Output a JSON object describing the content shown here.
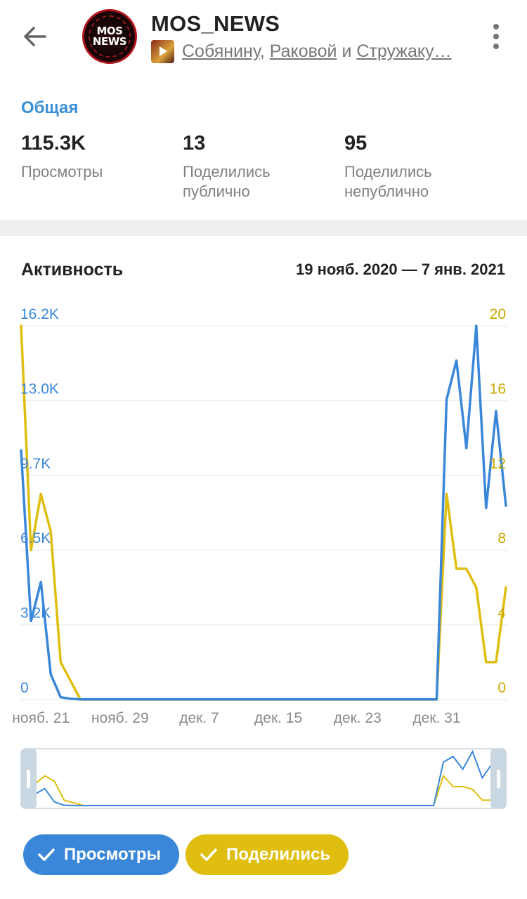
{
  "header": {
    "title": "MOS_NEWS",
    "avatar_text_top": "MOS",
    "avatar_text_bottom": "NEWS",
    "subtitle_link1": "Собянину",
    "subtitle_sep": ", ",
    "subtitle_link2": "Раковой",
    "subtitle_and": " и ",
    "subtitle_link3": "Стружаку…"
  },
  "summary": {
    "section_title": "Общая",
    "stats": [
      {
        "value": "115.3K",
        "label_line1": "Просмотры",
        "label_line2": ""
      },
      {
        "value": "13",
        "label_line1": "Поделились",
        "label_line2": "публично"
      },
      {
        "value": "95",
        "label_line1": "Поделились",
        "label_line2": "непублично"
      }
    ]
  },
  "activity": {
    "title": "Активность",
    "date_range": "19 нояб. 2020 — 7 янв. 2021"
  },
  "legend": {
    "views_label": "Просмотры",
    "shares_label": "Поделились"
  },
  "colors": {
    "views": "#3a87d9",
    "shares": "#dfbe0f",
    "accent": "#3a8fd6"
  },
  "chart_data": {
    "type": "line",
    "x": [
      "2020-11-19",
      "2020-11-20",
      "2020-11-21",
      "2020-11-22",
      "2020-11-23",
      "2020-11-24",
      "2020-11-25",
      "2020-11-26",
      "2020-11-27",
      "2020-11-28",
      "2020-11-29",
      "2020-11-30",
      "2020-12-01",
      "2020-12-02",
      "2020-12-03",
      "2020-12-04",
      "2020-12-05",
      "2020-12-06",
      "2020-12-07",
      "2020-12-08",
      "2020-12-09",
      "2020-12-10",
      "2020-12-11",
      "2020-12-12",
      "2020-12-13",
      "2020-12-14",
      "2020-12-15",
      "2020-12-16",
      "2020-12-17",
      "2020-12-18",
      "2020-12-19",
      "2020-12-20",
      "2020-12-21",
      "2020-12-22",
      "2020-12-23",
      "2020-12-24",
      "2020-12-25",
      "2020-12-26",
      "2020-12-27",
      "2020-12-28",
      "2020-12-29",
      "2020-12-30",
      "2020-12-31",
      "2021-01-01",
      "2021-01-02",
      "2021-01-03",
      "2021-01-04",
      "2021-01-05",
      "2021-01-06",
      "2021-01-07"
    ],
    "x_ticks": [
      "нояб. 21",
      "нояб. 29",
      "дек. 7",
      "дек. 15",
      "дек. 23",
      "дек. 31"
    ],
    "series": [
      {
        "name": "Просмотры",
        "axis": "left",
        "values": [
          10800,
          3400,
          5100,
          1100,
          100,
          30,
          10,
          10,
          5,
          5,
          5,
          5,
          5,
          5,
          5,
          5,
          5,
          5,
          5,
          5,
          5,
          5,
          5,
          5,
          5,
          5,
          5,
          5,
          5,
          5,
          5,
          5,
          5,
          5,
          5,
          5,
          5,
          5,
          5,
          5,
          5,
          5,
          5,
          13000,
          14700,
          10900,
          16200,
          8300,
          12500,
          8400
        ]
      },
      {
        "name": "Поделились",
        "axis": "right",
        "values": [
          20,
          8,
          11,
          9,
          2,
          1,
          0,
          0,
          0,
          0,
          0,
          0,
          0,
          0,
          0,
          0,
          0,
          0,
          0,
          0,
          0,
          0,
          0,
          0,
          0,
          0,
          0,
          0,
          0,
          0,
          0,
          0,
          0,
          0,
          0,
          0,
          0,
          0,
          0,
          0,
          0,
          0,
          0,
          11,
          7,
          7,
          6,
          2,
          2,
          6
        ]
      }
    ],
    "left_axis": {
      "ticks": [
        "0",
        "3.2K",
        "6.5K",
        "9.7K",
        "13.0K",
        "16.2K"
      ],
      "ylim": [
        0,
        16200
      ]
    },
    "right_axis": {
      "ticks": [
        "0",
        "4",
        "8",
        "12",
        "16",
        "20"
      ],
      "ylim": [
        0,
        20
      ]
    },
    "grid": true
  }
}
